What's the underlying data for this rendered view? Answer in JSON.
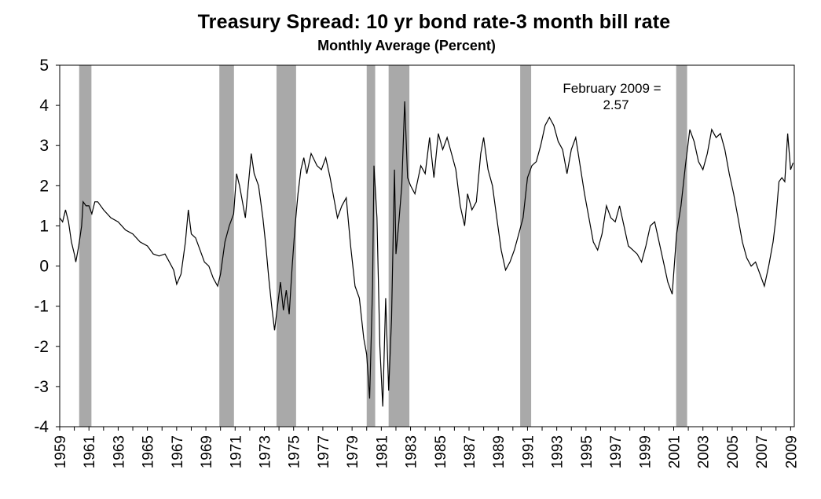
{
  "chart_data": {
    "type": "line",
    "title": "Treasury Spread: 10 yr bond rate-3 month bill rate",
    "subtitle": "Monthly Average (Percent)",
    "xlabel": "",
    "ylabel": "",
    "xlim": [
      1959.0,
      2009.25
    ],
    "ylim": [
      -4,
      5
    ],
    "yticks": [
      5,
      4,
      3,
      2,
      1,
      0,
      -1,
      -2,
      -3,
      -4
    ],
    "xticks": [
      "1959",
      "1961",
      "1963",
      "1965",
      "1967",
      "1969",
      "1971",
      "1973",
      "1975",
      "1977",
      "1979",
      "1981",
      "1983",
      "1985",
      "1987",
      "1989",
      "1991",
      "1993",
      "1995",
      "1997",
      "1999",
      "2001",
      "2003",
      "2005",
      "2007",
      "2009"
    ],
    "annotation": {
      "line1": "February 2009 =",
      "line2": "2.57"
    },
    "recessions": [
      [
        1960.33,
        1961.17
      ],
      [
        1969.92,
        1970.92
      ],
      [
        1973.83,
        1975.17
      ],
      [
        1980.0,
        1980.58
      ],
      [
        1981.5,
        1982.92
      ],
      [
        1990.5,
        1991.25
      ],
      [
        2001.17,
        2001.92
      ]
    ],
    "series": [
      {
        "points": [
          [
            1959.0,
            1.2
          ],
          [
            1959.2,
            1.1
          ],
          [
            1959.4,
            1.4
          ],
          [
            1959.6,
            1.1
          ],
          [
            1959.8,
            0.6
          ],
          [
            1960.0,
            0.3
          ],
          [
            1960.1,
            0.1
          ],
          [
            1960.3,
            0.5
          ],
          [
            1960.5,
            1.0
          ],
          [
            1960.6,
            1.6
          ],
          [
            1960.8,
            1.5
          ],
          [
            1961.0,
            1.5
          ],
          [
            1961.2,
            1.3
          ],
          [
            1961.4,
            1.6
          ],
          [
            1961.6,
            1.6
          ],
          [
            1962.0,
            1.4
          ],
          [
            1962.5,
            1.2
          ],
          [
            1963.0,
            1.1
          ],
          [
            1963.5,
            0.9
          ],
          [
            1964.0,
            0.8
          ],
          [
            1964.5,
            0.6
          ],
          [
            1965.0,
            0.5
          ],
          [
            1965.4,
            0.3
          ],
          [
            1965.8,
            0.25
          ],
          [
            1966.2,
            0.3
          ],
          [
            1966.5,
            0.1
          ],
          [
            1966.8,
            -0.1
          ],
          [
            1967.0,
            -0.45
          ],
          [
            1967.3,
            -0.2
          ],
          [
            1967.6,
            0.6
          ],
          [
            1967.8,
            1.4
          ],
          [
            1968.0,
            0.8
          ],
          [
            1968.3,
            0.7
          ],
          [
            1968.6,
            0.4
          ],
          [
            1968.9,
            0.1
          ],
          [
            1969.2,
            0.0
          ],
          [
            1969.5,
            -0.3
          ],
          [
            1969.8,
            -0.5
          ],
          [
            1970.0,
            -0.2
          ],
          [
            1970.3,
            0.6
          ],
          [
            1970.6,
            1.0
          ],
          [
            1970.9,
            1.3
          ],
          [
            1971.1,
            2.3
          ],
          [
            1971.3,
            2.0
          ],
          [
            1971.5,
            1.6
          ],
          [
            1971.7,
            1.2
          ],
          [
            1971.9,
            2.0
          ],
          [
            1972.1,
            2.8
          ],
          [
            1972.3,
            2.3
          ],
          [
            1972.6,
            2.0
          ],
          [
            1972.9,
            1.2
          ],
          [
            1973.1,
            0.5
          ],
          [
            1973.3,
            -0.3
          ],
          [
            1973.5,
            -1.0
          ],
          [
            1973.7,
            -1.6
          ],
          [
            1973.9,
            -1.0
          ],
          [
            1974.1,
            -0.4
          ],
          [
            1974.3,
            -1.1
          ],
          [
            1974.5,
            -0.6
          ],
          [
            1974.7,
            -1.2
          ],
          [
            1974.9,
            0.0
          ],
          [
            1975.1,
            1.0
          ],
          [
            1975.3,
            1.8
          ],
          [
            1975.5,
            2.4
          ],
          [
            1975.7,
            2.7
          ],
          [
            1975.9,
            2.3
          ],
          [
            1976.2,
            2.8
          ],
          [
            1976.6,
            2.5
          ],
          [
            1976.9,
            2.4
          ],
          [
            1977.2,
            2.7
          ],
          [
            1977.5,
            2.2
          ],
          [
            1977.8,
            1.6
          ],
          [
            1978.0,
            1.2
          ],
          [
            1978.3,
            1.5
          ],
          [
            1978.6,
            1.7
          ],
          [
            1978.9,
            0.5
          ],
          [
            1979.2,
            -0.5
          ],
          [
            1979.5,
            -0.8
          ],
          [
            1979.8,
            -1.8
          ],
          [
            1980.0,
            -2.2
          ],
          [
            1980.2,
            -3.3
          ],
          [
            1980.4,
            -0.5
          ],
          [
            1980.5,
            2.5
          ],
          [
            1980.7,
            1.2
          ],
          [
            1980.9,
            -2.0
          ],
          [
            1981.1,
            -3.5
          ],
          [
            1981.3,
            -0.8
          ],
          [
            1981.5,
            -3.1
          ],
          [
            1981.7,
            -1.3
          ],
          [
            1981.9,
            2.4
          ],
          [
            1982.0,
            0.3
          ],
          [
            1982.2,
            1.1
          ],
          [
            1982.4,
            2.0
          ],
          [
            1982.6,
            4.1
          ],
          [
            1982.8,
            2.2
          ],
          [
            1983.0,
            2.0
          ],
          [
            1983.3,
            1.8
          ],
          [
            1983.7,
            2.5
          ],
          [
            1984.0,
            2.3
          ],
          [
            1984.3,
            3.2
          ],
          [
            1984.6,
            2.2
          ],
          [
            1984.9,
            3.3
          ],
          [
            1985.2,
            2.9
          ],
          [
            1985.5,
            3.2
          ],
          [
            1985.8,
            2.8
          ],
          [
            1986.1,
            2.4
          ],
          [
            1986.4,
            1.5
          ],
          [
            1986.7,
            1.0
          ],
          [
            1986.9,
            1.8
          ],
          [
            1987.2,
            1.4
          ],
          [
            1987.5,
            1.6
          ],
          [
            1987.8,
            2.8
          ],
          [
            1988.0,
            3.2
          ],
          [
            1988.3,
            2.4
          ],
          [
            1988.6,
            2.0
          ],
          [
            1988.9,
            1.2
          ],
          [
            1989.2,
            0.4
          ],
          [
            1989.5,
            -0.1
          ],
          [
            1989.8,
            0.1
          ],
          [
            1990.1,
            0.4
          ],
          [
            1990.4,
            0.8
          ],
          [
            1990.7,
            1.2
          ],
          [
            1991.0,
            2.2
          ],
          [
            1991.3,
            2.5
          ],
          [
            1991.6,
            2.6
          ],
          [
            1991.9,
            3.0
          ],
          [
            1992.2,
            3.5
          ],
          [
            1992.5,
            3.7
          ],
          [
            1992.8,
            3.5
          ],
          [
            1993.1,
            3.1
          ],
          [
            1993.4,
            2.9
          ],
          [
            1993.7,
            2.3
          ],
          [
            1994.0,
            2.9
          ],
          [
            1994.3,
            3.2
          ],
          [
            1994.6,
            2.5
          ],
          [
            1994.9,
            1.8
          ],
          [
            1995.2,
            1.2
          ],
          [
            1995.5,
            0.6
          ],
          [
            1995.8,
            0.4
          ],
          [
            1996.1,
            0.8
          ],
          [
            1996.4,
            1.5
          ],
          [
            1996.7,
            1.2
          ],
          [
            1997.0,
            1.1
          ],
          [
            1997.3,
            1.5
          ],
          [
            1997.6,
            1.0
          ],
          [
            1997.9,
            0.5
          ],
          [
            1998.2,
            0.4
          ],
          [
            1998.5,
            0.3
          ],
          [
            1998.8,
            0.1
          ],
          [
            1999.1,
            0.5
          ],
          [
            1999.4,
            1.0
          ],
          [
            1999.7,
            1.1
          ],
          [
            2000.0,
            0.6
          ],
          [
            2000.3,
            0.1
          ],
          [
            2000.6,
            -0.4
          ],
          [
            2000.9,
            -0.7
          ],
          [
            2001.2,
            0.8
          ],
          [
            2001.5,
            1.5
          ],
          [
            2001.8,
            2.5
          ],
          [
            2002.1,
            3.4
          ],
          [
            2002.4,
            3.1
          ],
          [
            2002.7,
            2.6
          ],
          [
            2003.0,
            2.4
          ],
          [
            2003.3,
            2.8
          ],
          [
            2003.6,
            3.4
          ],
          [
            2003.9,
            3.2
          ],
          [
            2004.2,
            3.3
          ],
          [
            2004.5,
            2.9
          ],
          [
            2004.8,
            2.3
          ],
          [
            2005.1,
            1.8
          ],
          [
            2005.4,
            1.2
          ],
          [
            2005.7,
            0.6
          ],
          [
            2006.0,
            0.2
          ],
          [
            2006.3,
            0.0
          ],
          [
            2006.6,
            0.1
          ],
          [
            2006.9,
            -0.2
          ],
          [
            2007.2,
            -0.5
          ],
          [
            2007.5,
            0.0
          ],
          [
            2007.8,
            0.6
          ],
          [
            2008.0,
            1.2
          ],
          [
            2008.2,
            2.1
          ],
          [
            2008.4,
            2.2
          ],
          [
            2008.6,
            2.1
          ],
          [
            2008.8,
            3.3
          ],
          [
            2009.0,
            2.4
          ],
          [
            2009.17,
            2.57
          ]
        ]
      }
    ],
    "colors": {
      "line": "#000000",
      "recession": "#a9a9a9",
      "axis": "#000000"
    },
    "grid": false,
    "legend": "none"
  }
}
